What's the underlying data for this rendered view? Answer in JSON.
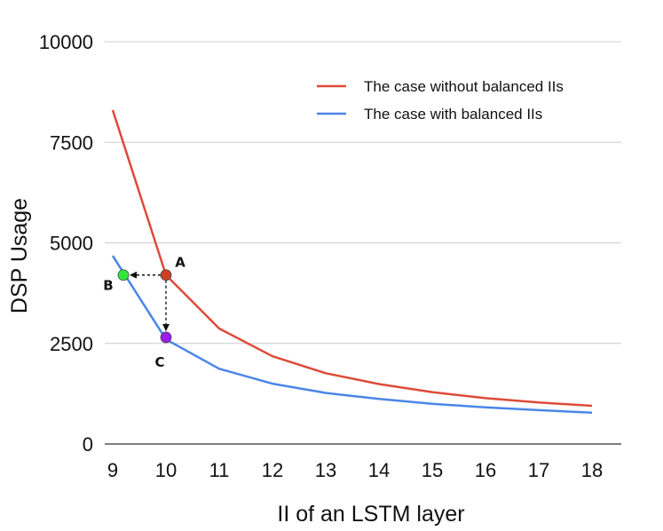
{
  "chart_data": {
    "type": "line",
    "title": "",
    "xlabel": "II of an LSTM layer",
    "ylabel": "DSP Usage",
    "x": [
      9,
      10,
      11,
      12,
      13,
      14,
      15,
      16,
      17,
      18
    ],
    "xlim": [
      8.85,
      18.55
    ],
    "ylim": [
      0,
      10000
    ],
    "yticks": [
      0,
      2500,
      5000,
      7500,
      10000
    ],
    "xticks": [
      9,
      10,
      11,
      12,
      13,
      14,
      15,
      16,
      17,
      18
    ],
    "grid": "horizontal",
    "legend_position": "top-right",
    "series": [
      {
        "name": "The case without balanced IIs",
        "color": "#dd4b39",
        "values": [
          8300,
          4200,
          2870,
          2180,
          1760,
          1490,
          1290,
          1140,
          1030,
          950
        ]
      },
      {
        "name": "The case with balanced IIs",
        "color": "#4a86e8",
        "values": [
          4680,
          2600,
          1870,
          1500,
          1270,
          1120,
          1000,
          910,
          840,
          780
        ]
      }
    ],
    "annotations": [
      {
        "label": "A",
        "x": 10,
        "y": 4200,
        "color": "#cc4125"
      },
      {
        "label": "B",
        "x": 9.2,
        "y": 4200,
        "color": "#33e83b"
      },
      {
        "label": "C",
        "x": 10,
        "y": 2650,
        "color": "#9a1bf0"
      }
    ],
    "arrows": [
      {
        "from": "A",
        "to": "B"
      },
      {
        "from": "A",
        "to": "C"
      }
    ]
  }
}
